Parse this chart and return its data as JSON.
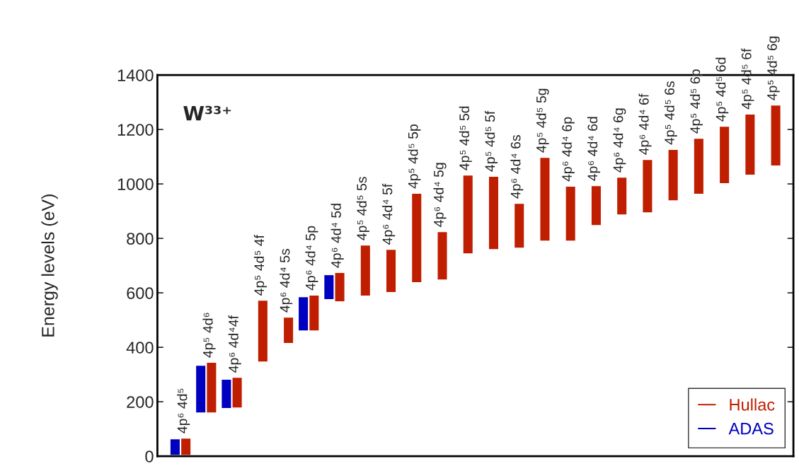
{
  "chart_data": {
    "type": "bar",
    "title": "W³³⁺",
    "ylabel": "Energy levels (eV)",
    "categories": [
      "4p⁶ 4d⁵",
      "4p⁵ 4d⁶",
      "4p⁶ 4d⁴4f",
      "4p⁵ 4d⁵ 4f",
      "4p⁶ 4d⁴ 5s",
      "4p⁶ 4d⁴ 5p",
      "4p⁶ 4d⁴ 5d",
      "4p⁵ 4d⁵ 5s",
      "4p⁶ 4d⁴ 5f",
      "4p⁵ 4d⁵ 5p",
      "4p⁶ 4d⁴ 5g",
      "4p⁵ 4d⁵ 5d",
      "4p⁵ 4d⁵ 5f",
      "4p⁶ 4d⁴ 6s",
      "4p⁵ 4d⁵ 5g",
      "4p⁶ 4d⁴ 6p",
      "4p⁶ 4d⁴ 6d",
      "4p⁶ 4d⁴ 6g",
      "4p⁶ 4d⁴ 6f",
      "4p⁵ 4d⁵ 6s",
      "4p⁵ 4d⁵ 6p",
      "4p⁵ 4d⁵ 6d",
      "4p⁵ 4d⁵ 6f",
      "4p⁵ 4d⁵ 6g"
    ],
    "series": [
      {
        "name": "Hullac",
        "color": "#c01e00",
        "base": [
          5,
          161,
          179,
          348,
          416,
          462,
          569,
          590,
          603,
          639,
          649,
          745,
          761,
          766,
          792,
          792,
          849,
          888,
          896,
          940,
          964,
          1003,
          1034,
          1068
        ],
        "values": [
          60,
          182,
          109,
          223,
          93,
          128,
          104,
          184,
          155,
          325,
          174,
          286,
          265,
          161,
          304,
          198,
          143,
          135,
          192,
          185,
          202,
          207,
          221,
          220
        ]
      },
      {
        "name": "ADAS",
        "color": "#0000c0",
        "base": [
          5,
          161,
          177,
          null,
          null,
          462,
          577,
          null,
          null,
          null,
          null,
          null,
          null,
          null,
          null,
          null,
          null,
          null,
          null,
          null,
          null,
          null,
          null,
          null
        ],
        "values": [
          57,
          171,
          104,
          null,
          null,
          122,
          88,
          null,
          null,
          null,
          null,
          null,
          null,
          null,
          null,
          null,
          null,
          null,
          null,
          null,
          null,
          null,
          null,
          null
        ]
      }
    ],
    "ylim": [
      0,
      1400
    ],
    "yticks": [
      0,
      200,
      400,
      600,
      800,
      1000,
      1200,
      1400
    ],
    "legend": "bottom right",
    "grid": false
  }
}
